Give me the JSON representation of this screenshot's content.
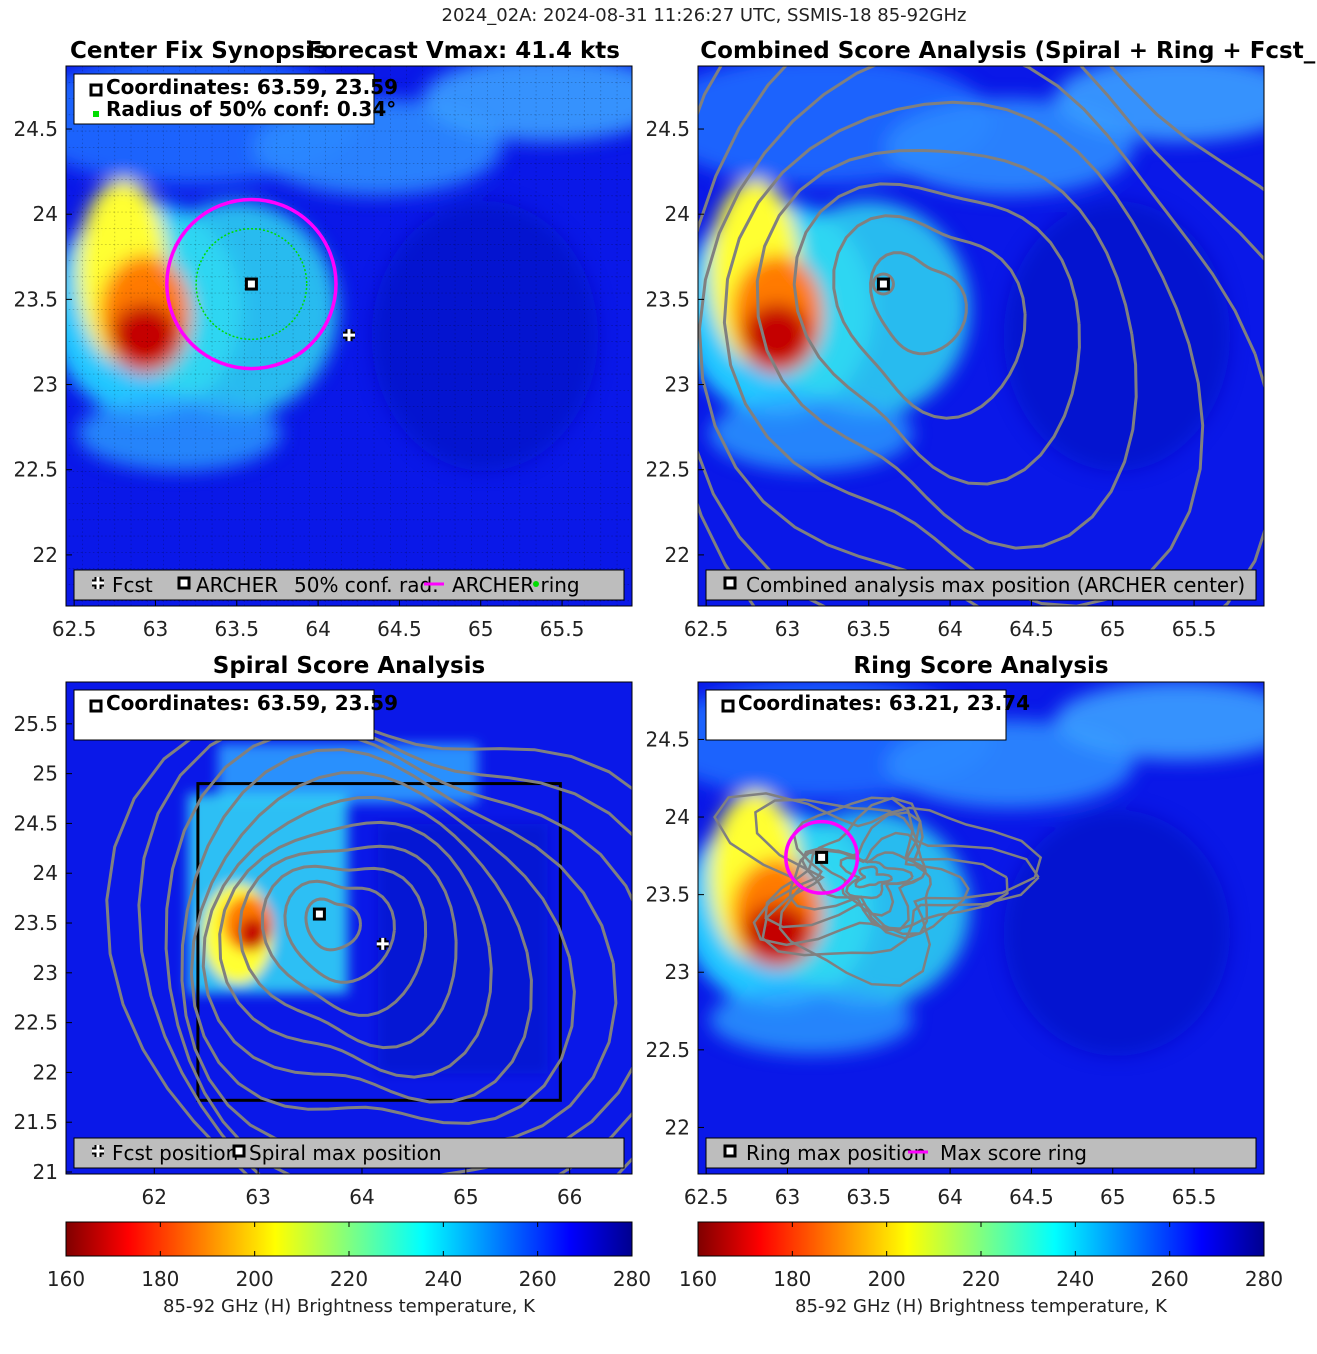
{
  "figure": {
    "suptitle": "2024_02A: 2024-08-31 11:26:27 UTC, SSMIS-18 85-92GHz"
  },
  "colors": {
    "jet_reversed": [
      "#800000",
      "#ff0000",
      "#ff8000",
      "#ffff00",
      "#80ff80",
      "#00ffff",
      "#0080ff",
      "#0000ff",
      "#00008f"
    ],
    "contour": "#808080",
    "archer_ring": "#ff00ff",
    "conf_circle": "#00dd00"
  },
  "chart_data": [
    {
      "id": "center_fix",
      "type": "heatmap",
      "title_left": "Center Fix Synopsis",
      "title_right": "Forecast Vmax: 41.4 kts",
      "xlim": [
        62.45,
        65.93
      ],
      "ylim": [
        21.7,
        24.87
      ],
      "xticks": [
        "62.5",
        "63",
        "63.5",
        "64",
        "64.5",
        "65",
        "65.5"
      ],
      "yticks": [
        "22",
        "22.5",
        "23",
        "23.5",
        "24",
        "24.5"
      ],
      "grid": true,
      "archer_center": [
        63.59,
        23.59
      ],
      "forecast_position": [
        64.19,
        23.29
      ],
      "conf_radius": 0.34,
      "archer_ring_radius": 0.52,
      "info_lines": [
        "Coordinates: 63.59, 23.59",
        "Radius of 50% conf: 0.34°"
      ],
      "legend": [
        "Fcst",
        "ARCHER",
        "50% conf. rad.",
        "ARCHER ring"
      ],
      "legend_location": "bottom"
    },
    {
      "id": "combined",
      "type": "heatmap",
      "title": "Combined Score Analysis (Spiral + Ring + Fcst_Pe",
      "xlim": [
        62.45,
        65.93
      ],
      "ylim": [
        21.7,
        24.87
      ],
      "xticks": [
        "62.5",
        "63",
        "63.5",
        "64",
        "64.5",
        "65",
        "65.5"
      ],
      "yticks": [
        "22",
        "22.5",
        "23",
        "23.5",
        "24",
        "24.5"
      ],
      "archer_center": [
        63.59,
        23.59
      ],
      "legend": [
        "Combined analysis max position (ARCHER center)"
      ],
      "legend_location": "bottom"
    },
    {
      "id": "spiral",
      "type": "heatmap",
      "title": "Spiral Score Analysis",
      "xlim": [
        61.15,
        66.6
      ],
      "ylim": [
        20.98,
        25.92
      ],
      "xticks": [
        "62",
        "63",
        "64",
        "65",
        "66"
      ],
      "yticks": [
        "21",
        "21.5",
        "22",
        "22.5",
        "23",
        "23.5",
        "24",
        "24.5",
        "25",
        "25.5"
      ],
      "spiral_max": [
        63.59,
        23.59
      ],
      "forecast_position": [
        64.2,
        23.29
      ],
      "search_box": [
        62.42,
        21.72,
        65.91,
        24.9
      ],
      "info_lines": [
        "Coordinates: 63.59, 23.59"
      ],
      "legend": [
        "Fcst position",
        "Spiral max position"
      ],
      "legend_location": "bottom"
    },
    {
      "id": "ring",
      "type": "heatmap",
      "title": "Ring Score Analysis",
      "xlim": [
        62.45,
        65.93
      ],
      "ylim": [
        21.7,
        24.87
      ],
      "xticks": [
        "62.5",
        "63",
        "63.5",
        "64",
        "64.5",
        "65",
        "65.5"
      ],
      "yticks": [
        "22",
        "22.5",
        "23",
        "23.5",
        "24",
        "24.5"
      ],
      "ring_max": [
        63.21,
        23.74
      ],
      "max_score_ring_radius": 0.22,
      "info_lines": [
        "Coordinates: 63.21, 23.74"
      ],
      "legend": [
        "Ring max position",
        "Max score ring"
      ],
      "legend_location": "bottom"
    }
  ],
  "colorbars": [
    {
      "ticks": [
        "160",
        "180",
        "200",
        "220",
        "240",
        "260",
        "280"
      ],
      "label": "85-92 GHz (H) Brightness temperature, K"
    },
    {
      "ticks": [
        "160",
        "180",
        "200",
        "220",
        "240",
        "260",
        "280"
      ],
      "label": "85-92 GHz (H) Brightness temperature, K"
    }
  ]
}
